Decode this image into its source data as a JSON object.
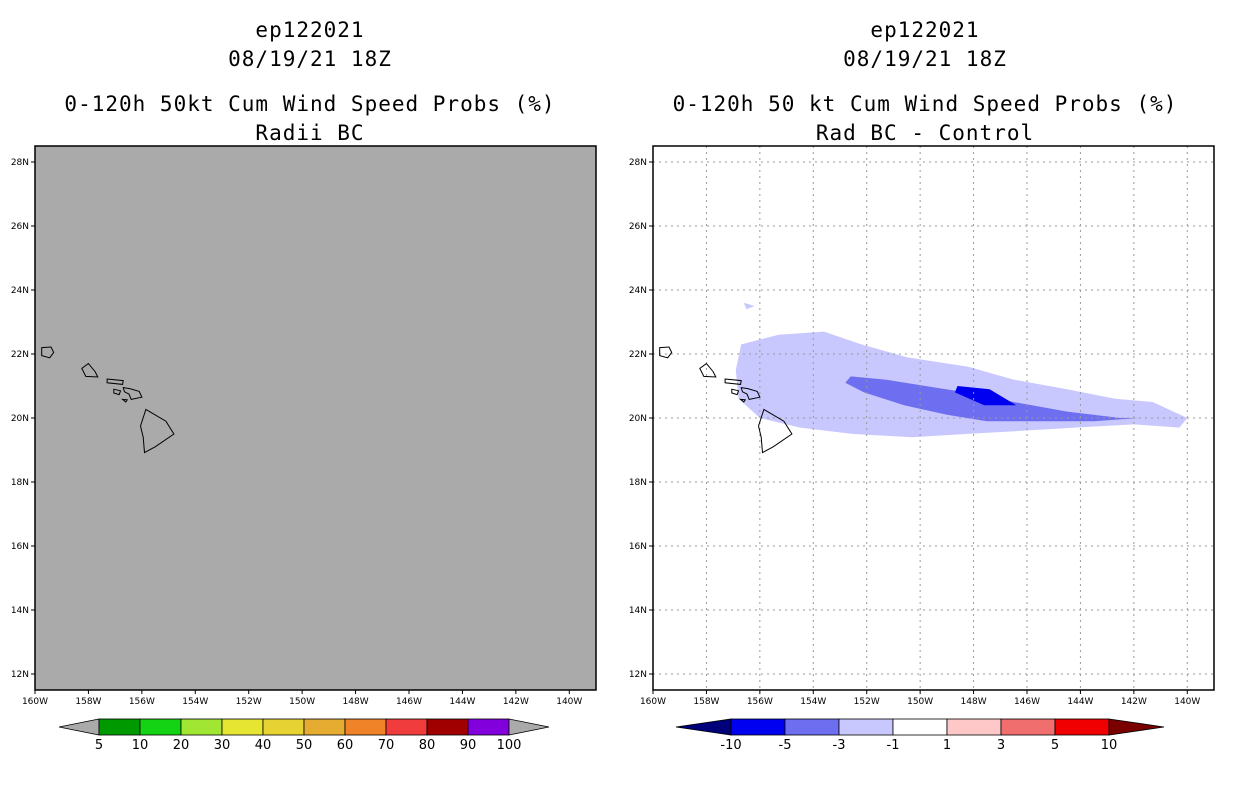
{
  "chart_data": [
    {
      "type": "heatmap",
      "title_lines": [
        "ep122021",
        "08/19/21 18Z",
        "0-120h 50kt Cum Wind Speed Probs (%)",
        "Radii BC"
      ],
      "x_ticks": [
        "160W",
        "158W",
        "156W",
        "154W",
        "152W",
        "150W",
        "148W",
        "146W",
        "144W",
        "142W",
        "140W"
      ],
      "y_ticks": [
        "28N",
        "26N",
        "24N",
        "22N",
        "20N",
        "18N",
        "16N",
        "14N",
        "12N"
      ],
      "lon_range": [
        -160,
        -139
      ],
      "lat_range": [
        11.5,
        28.5
      ],
      "grid": false,
      "field": "all values below 5% (gray fill)",
      "colorbar": {
        "labels": [
          "5",
          "10",
          "20",
          "30",
          "40",
          "50",
          "60",
          "70",
          "80",
          "90",
          "100"
        ],
        "colors": [
          "#009a00",
          "#14d214",
          "#a0e632",
          "#e6e632",
          "#e6d232",
          "#e6ac32",
          "#f08228",
          "#f03c3c",
          "#a00000",
          "#8200dc"
        ],
        "under_color": "#aaaaaa",
        "over_color": "#aaaaaa"
      }
    },
    {
      "type": "heatmap",
      "title_lines": [
        "ep122021",
        "08/19/21 18Z",
        "0-120h 50 kt Cum Wind Speed Probs (%)",
        "Rad BC - Control"
      ],
      "x_ticks": [
        "160W",
        "158W",
        "156W",
        "154W",
        "152W",
        "150W",
        "148W",
        "146W",
        "144W",
        "142W",
        "140W"
      ],
      "y_ticks": [
        "28N",
        "26N",
        "24N",
        "22N",
        "20N",
        "18N",
        "16N",
        "14N",
        "12N"
      ],
      "lon_range": [
        -160,
        -139
      ],
      "lat_range": [
        11.5,
        28.5
      ],
      "grid": true,
      "contours": [
        {
          "level": "-3 to -1",
          "color": "#c8c8ff",
          "points": [
            [
              -156.7,
              22.3
            ],
            [
              -155.3,
              22.6
            ],
            [
              -153.6,
              22.7
            ],
            [
              -152.2,
              22.3
            ],
            [
              -150.5,
              21.9
            ],
            [
              -148.2,
              21.6
            ],
            [
              -146.5,
              21.2
            ],
            [
              -144.5,
              20.9
            ],
            [
              -142.7,
              20.6
            ],
            [
              -141.3,
              20.5
            ],
            [
              -140.0,
              20.0
            ],
            [
              -140.3,
              19.7
            ],
            [
              -142.0,
              19.8
            ],
            [
              -144.2,
              19.7
            ],
            [
              -146.2,
              19.6
            ],
            [
              -148.3,
              19.5
            ],
            [
              -150.3,
              19.4
            ],
            [
              -152.5,
              19.5
            ],
            [
              -154.5,
              19.7
            ],
            [
              -156.0,
              20.0
            ],
            [
              -156.8,
              20.6
            ],
            [
              -156.9,
              21.5
            ]
          ]
        },
        {
          "level": "-3 to -1",
          "color": "#c8c8ff",
          "points": [
            [
              -156.6,
              23.6
            ],
            [
              -156.2,
              23.5
            ],
            [
              -156.5,
              23.4
            ]
          ]
        },
        {
          "level": "-5 to -3",
          "color": "#6e6ef0",
          "points": [
            [
              -152.6,
              21.3
            ],
            [
              -151.3,
              21.2
            ],
            [
              -149.8,
              21.0
            ],
            [
              -148.3,
              20.8
            ],
            [
              -146.5,
              20.5
            ],
            [
              -144.5,
              20.2
            ],
            [
              -142.5,
              20.0
            ],
            [
              -141.8,
              20.0
            ],
            [
              -143.5,
              19.9
            ],
            [
              -145.5,
              19.9
            ],
            [
              -147.5,
              19.9
            ],
            [
              -149.0,
              20.1
            ],
            [
              -150.6,
              20.4
            ],
            [
              -152.1,
              20.8
            ],
            [
              -152.8,
              21.1
            ]
          ]
        },
        {
          "level": "-10 to -5",
          "color": "#0000f0",
          "points": [
            [
              -148.6,
              21.0
            ],
            [
              -147.4,
              20.9
            ],
            [
              -146.4,
              20.4
            ],
            [
              -147.6,
              20.4
            ],
            [
              -148.7,
              20.8
            ]
          ]
        }
      ],
      "colorbar": {
        "labels": [
          "-10",
          "-5",
          "-3",
          "-1",
          "1",
          "3",
          "5",
          "10"
        ],
        "colors": [
          "#0000f0",
          "#6e6ef0",
          "#c8c8ff",
          "#ffffff",
          "#ffc8c8",
          "#f06e6e",
          "#f00000"
        ],
        "under_color": "#00007a",
        "over_color": "#7a0000"
      }
    }
  ],
  "islands": [
    {
      "name": "Kauai",
      "points": [
        [
          -159.75,
          22.2
        ],
        [
          -159.4,
          22.22
        ],
        [
          -159.3,
          22.05
        ],
        [
          -159.45,
          21.88
        ],
        [
          -159.75,
          21.95
        ]
      ]
    },
    {
      "name": "Oahu",
      "points": [
        [
          -158.25,
          21.55
        ],
        [
          -158.0,
          21.7
        ],
        [
          -157.75,
          21.45
        ],
        [
          -157.65,
          21.28
        ],
        [
          -158.1,
          21.3
        ]
      ]
    },
    {
      "name": "Molokai",
      "points": [
        [
          -157.3,
          21.22
        ],
        [
          -156.7,
          21.17
        ],
        [
          -156.72,
          21.05
        ],
        [
          -157.3,
          21.1
        ]
      ]
    },
    {
      "name": "Lanai",
      "points": [
        [
          -157.05,
          20.9
        ],
        [
          -156.8,
          20.85
        ],
        [
          -156.85,
          20.73
        ],
        [
          -157.05,
          20.78
        ]
      ]
    },
    {
      "name": "Maui",
      "points": [
        [
          -156.7,
          20.95
        ],
        [
          -156.45,
          20.92
        ],
        [
          -156.1,
          20.83
        ],
        [
          -156.0,
          20.65
        ],
        [
          -156.4,
          20.58
        ],
        [
          -156.48,
          20.75
        ],
        [
          -156.65,
          20.82
        ]
      ]
    },
    {
      "name": "Kahoolawe",
      "points": [
        [
          -156.72,
          20.58
        ],
        [
          -156.55,
          20.57
        ],
        [
          -156.6,
          20.5
        ]
      ]
    },
    {
      "name": "Hawaii",
      "points": [
        [
          -155.85,
          20.27
        ],
        [
          -155.1,
          19.9
        ],
        [
          -154.8,
          19.5
        ],
        [
          -155.5,
          19.1
        ],
        [
          -155.9,
          18.92
        ],
        [
          -155.95,
          19.4
        ],
        [
          -156.05,
          19.75
        ]
      ]
    }
  ]
}
